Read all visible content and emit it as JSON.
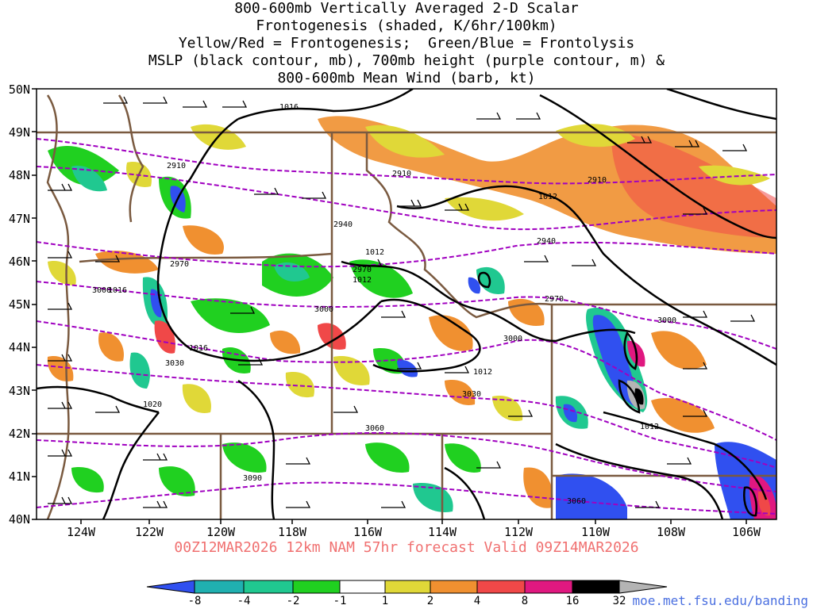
{
  "title_lines": [
    "800-600mb Vertically Averaged 2-D Scalar",
    "Frontogenesis (shaded, K/6hr/100km)",
    "Yellow/Red = Frontogenesis;  Green/Blue = Frontolysis",
    "MSLP (black contour, mb), 700mb height (purple contour, m) &",
    "800-600mb Mean Wind (barb, kt)"
  ],
  "lat_labels": [
    "50N",
    "49N",
    "48N",
    "47N",
    "46N",
    "45N",
    "44N",
    "43N",
    "42N",
    "41N",
    "40N"
  ],
  "lon_labels": [
    "124W",
    "122W",
    "120W",
    "118W",
    "116W",
    "114W",
    "112W",
    "110W",
    "108W",
    "106W"
  ],
  "forecast_label": "00Z12MAR2026 12km NAM 57hr forecast Valid 09Z14MAR2026",
  "credit": "moe.met.fsu.edu/banding",
  "colorbar": {
    "labels": [
      "-8",
      "-4",
      "-2",
      "-1",
      "1",
      "2",
      "4",
      "8",
      "16",
      "32"
    ],
    "colors": [
      "#3050f0",
      "#20b0b0",
      "#20c890",
      "#20d020",
      "#ffffff",
      "#e0d838",
      "#f09030",
      "#f04848",
      "#e01880",
      "#000000",
      "#b4b4b4"
    ]
  },
  "colors": {
    "mslp": "#000000",
    "height": "#a000c0",
    "border": "#7a5a40",
    "barb": "#000000"
  },
  "mslp_labels": [
    "1016",
    "1012",
    "1012",
    "1012",
    "1016",
    "1020",
    "1016",
    "1012",
    "1012"
  ],
  "height_labels": [
    "2910",
    "2910",
    "2910",
    "2940",
    "2940",
    "2970",
    "2970",
    "2970",
    "3000",
    "3000",
    "3000",
    "3000",
    "3030",
    "3030",
    "3060",
    "3090",
    "3060"
  ]
}
